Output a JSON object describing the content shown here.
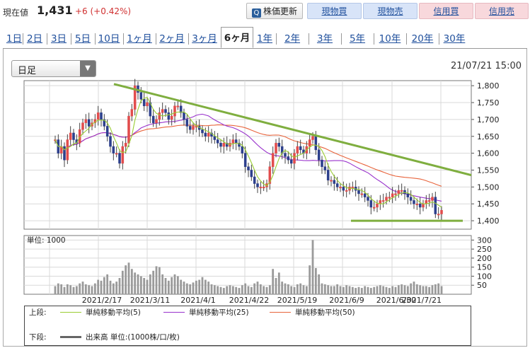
{
  "header": {
    "price_label": "現在値",
    "price_value": "1,431",
    "price_change": "+6 (+0.42%)",
    "refresh_label": "株価更新",
    "refresh_icon": "Q",
    "buttons": [
      "現物買",
      "現物売",
      "信用買",
      "信用売"
    ]
  },
  "tabs": [
    "1日",
    "2日",
    "3日",
    "5日",
    "10日",
    "1ヶ月",
    "2ヶ月",
    "3ヶ月",
    "6ヶ月",
    "1年",
    "2年",
    "3年",
    "5年",
    "10年",
    "20年",
    "30年"
  ],
  "active_tab": 8,
  "period_select": {
    "value": "日足",
    "arrow_icon": "▼"
  },
  "datetime": "21/07/21 15:00",
  "colors": {
    "up": "#e24c4c",
    "down": "#2c3f8c",
    "ma5": "#9acd32",
    "ma25": "#9932cc",
    "ma50": "#e8643c",
    "trend": "#7fae3f",
    "volume": "#9a9a9a",
    "grid": "#d9d9d9"
  },
  "chart_data": {
    "type": "candlestick",
    "x_tick_labels": [
      "2021/2/17",
      "2021/3/11",
      "2021/4/1",
      "2021/4/22",
      "2021/5/19",
      "2021/6/9",
      "2021/6/30",
      "2021/7/21"
    ],
    "price_axis": {
      "ticks": [
        1400,
        1450,
        1500,
        1550,
        1600,
        1650,
        1700,
        1750,
        1800
      ],
      "ylim": [
        1375,
        1815
      ]
    },
    "volume_axis": {
      "unit_label": "単位: 1000",
      "ticks": [
        50,
        100,
        150,
        200,
        250,
        300
      ],
      "ylim": [
        0,
        325
      ]
    },
    "close": [
      1640,
      1600,
      1620,
      1580,
      1640,
      1660,
      1640,
      1630,
      1670,
      1690,
      1700,
      1680,
      1690,
      1700,
      1720,
      1700,
      1680,
      1650,
      1620,
      1600,
      1600,
      1570,
      1620,
      1630,
      1710,
      1730,
      1800,
      1780,
      1760,
      1740,
      1750,
      1710,
      1690,
      1700,
      1720,
      1730,
      1720,
      1700,
      1710,
      1740,
      1740,
      1720,
      1700,
      1680,
      1670,
      1680,
      1680,
      1670,
      1660,
      1650,
      1660,
      1650,
      1640,
      1630,
      1620,
      1630,
      1620,
      1630,
      1640,
      1630,
      1620,
      1600,
      1560,
      1550,
      1530,
      1510,
      1500,
      1500,
      1500,
      1510,
      1560,
      1600,
      1630,
      1620,
      1600,
      1590,
      1580,
      1570,
      1600,
      1620,
      1610,
      1600,
      1620,
      1640,
      1650,
      1610,
      1580,
      1560,
      1550,
      1520,
      1520,
      1510,
      1500,
      1500,
      1490,
      1490,
      1500,
      1500,
      1490,
      1480,
      1480,
      1470,
      1460,
      1440,
      1440,
      1450,
      1460,
      1460,
      1470,
      1470,
      1480,
      1480,
      1490,
      1490,
      1480,
      1470,
      1460,
      1450,
      1450,
      1440,
      1450,
      1460,
      1460,
      1470,
      1420,
      1420,
      1431
    ],
    "volume": [
      45,
      60,
      55,
      40,
      55,
      50,
      40,
      45,
      60,
      70,
      55,
      50,
      45,
      60,
      80,
      75,
      95,
      110,
      75,
      60,
      70,
      90,
      130,
      160,
      175,
      140,
      120,
      110,
      100,
      90,
      80,
      110,
      130,
      155,
      150,
      110,
      90,
      75,
      95,
      110,
      100,
      80,
      70,
      60,
      55,
      65,
      75,
      80,
      95,
      80,
      70,
      55,
      50,
      45,
      40,
      35,
      45,
      50,
      45,
      40,
      35,
      50,
      60,
      45,
      40,
      60,
      70,
      55,
      45,
      40,
      50,
      140,
      90,
      120,
      70,
      60,
      55,
      45,
      40,
      55,
      60,
      50,
      45,
      160,
      300,
      145,
      110,
      60,
      55,
      50,
      45,
      45,
      55,
      45,
      40,
      50,
      45,
      40,
      35,
      40,
      35,
      45,
      40,
      35,
      40,
      45,
      50,
      45,
      40,
      35,
      45,
      40,
      50,
      55,
      50,
      45,
      60,
      70,
      55,
      50,
      45,
      45,
      40,
      50,
      55,
      60,
      45
    ],
    "legend_top_label": "上段:",
    "legend_bottom_label": "下段:",
    "series": [
      {
        "name": "単純移動平均(5)"
      },
      {
        "name": "単純移動平均(25)"
      },
      {
        "name": "単純移動平均(50)"
      },
      {
        "name": "出来高 単位:(1000株/口/枚)"
      }
    ]
  }
}
